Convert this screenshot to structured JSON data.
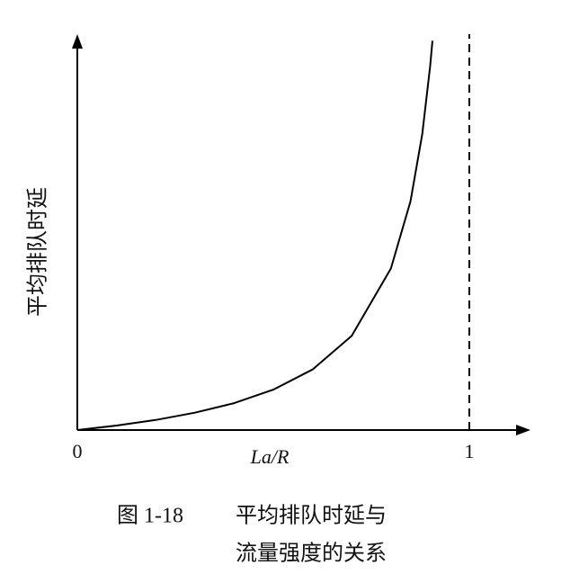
{
  "chart_data": {
    "type": "line",
    "x_label": "La/R",
    "y_label": "平均排队时延",
    "caption_label": "图 1-18",
    "title": [
      "平均排队时延与",
      "流量强度的关系"
    ],
    "x": [
      0,
      0.1,
      0.2,
      0.3,
      0.4,
      0.5,
      0.6,
      0.7,
      0.8,
      0.85,
      0.88,
      0.9,
      0.906
    ],
    "series": [
      {
        "name": "平均排队时延",
        "color": "#000000",
        "values": [
          0,
          0.111,
          0.25,
          0.429,
          0.667,
          1,
          1.5,
          2.333,
          4,
          5.667,
          7.333,
          9,
          9.638
        ]
      }
    ],
    "xlim": [
      0,
      1.13
    ],
    "ylim": [
      0,
      9.8
    ],
    "xticks": [
      0,
      1
    ]
  }
}
